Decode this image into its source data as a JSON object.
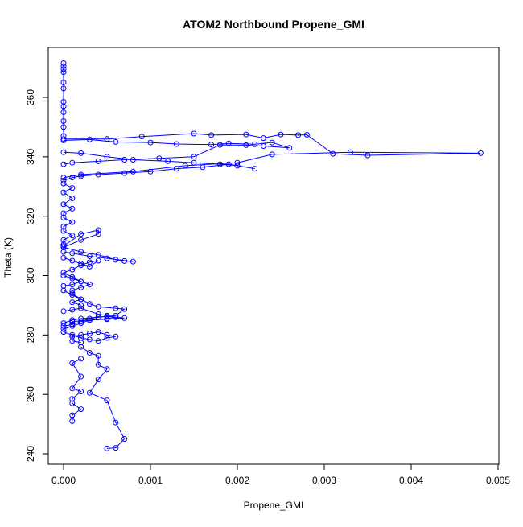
{
  "chart_data": {
    "type": "scatter",
    "title": "ATOM2 Northbound Propene_GMI",
    "xlabel": "Propene_GMI",
    "ylabel": "Theta (K)",
    "xlim": [
      0,
      0.005
    ],
    "ylim": [
      240,
      370
    ],
    "xticks": [
      "0.000",
      "0.001",
      "0.002",
      "0.003",
      "0.004",
      "0.005"
    ],
    "yticks": [
      "240",
      "260",
      "280",
      "300",
      "320",
      "340",
      "360"
    ],
    "xtick_values": [
      0,
      0.001,
      0.002,
      0.003,
      0.004,
      0.005
    ],
    "ytick_values": [
      240,
      260,
      280,
      300,
      320,
      340,
      360
    ],
    "marker": "open-circle",
    "connected": true,
    "color": "#0000ff",
    "series": [
      {
        "x": [
          0.0,
          0.0,
          0.0,
          0.0,
          0.0,
          0.0,
          0.0,
          0.0,
          0.0,
          0.0,
          0.0,
          0.0
        ],
        "y": [
          371.5,
          370.5,
          369.5,
          368.5,
          365.0,
          363.0,
          358.5,
          357.0,
          355.0,
          352.0,
          350.0,
          347.0
        ]
      },
      {
        "x": [
          0.0,
          0.0005,
          0.0009,
          0.0015,
          0.0017,
          0.0021,
          0.0023,
          0.0025,
          0.0027,
          0.0028,
          0.0031,
          0.0035,
          0.0048,
          0.0033,
          0.0024,
          0.002,
          0.0014,
          0.0008,
          0.0002,
          0.0
        ],
        "y": [
          346.0,
          346.0,
          346.8,
          347.8,
          347.3,
          347.5,
          346.3,
          347.5,
          347.3,
          347.4,
          341.0,
          340.5,
          341.2,
          341.5,
          340.8,
          338.0,
          337.0,
          335.0,
          334.0,
          333.0
        ]
      },
      {
        "x": [
          0.0,
          0.0003,
          0.0006,
          0.001,
          0.0013,
          0.0017,
          0.0019,
          0.0022,
          0.0024,
          0.0026,
          0.0023,
          0.0021,
          0.0018,
          0.0015,
          0.0011,
          0.0007,
          0.0004,
          0.0001,
          0.0
        ],
        "y": [
          345.5,
          345.8,
          345.0,
          344.8,
          344.3,
          344.1,
          344.5,
          344.2,
          344.8,
          343.0,
          343.6,
          343.9,
          344.0,
          340.0,
          339.5,
          339.0,
          338.5,
          338.0,
          337.5
        ]
      },
      {
        "x": [
          0.0,
          0.0002,
          0.0005,
          0.0008,
          0.0012,
          0.0015,
          0.0018,
          0.002,
          0.0022,
          0.0019,
          0.0016,
          0.0013,
          0.001,
          0.0007,
          0.0004,
          0.0002,
          0.0001,
          0.0
        ],
        "y": [
          341.5,
          341.2,
          340.0,
          339.0,
          338.5,
          338.0,
          337.5,
          337.0,
          336.0,
          337.5,
          336.5,
          336.0,
          335.0,
          334.5,
          334.0,
          333.5,
          333.0,
          332.0
        ]
      },
      {
        "x": [
          0.0,
          0.0001,
          0.0,
          0.0001,
          0.0,
          0.0001,
          0.0,
          0.0,
          0.0001,
          0.0,
          0.0,
          0.0001,
          0.0,
          0.0
        ],
        "y": [
          331.0,
          329.5,
          328.0,
          326.0,
          324.0,
          322.5,
          321.0,
          319.5,
          318.0,
          316.5,
          315.0,
          313.5,
          312.0,
          310.5
        ]
      },
      {
        "x": [
          0.0,
          0.0002,
          0.0004,
          0.0004,
          0.0002,
          0.0,
          0.0002,
          0.0004,
          0.0006,
          0.0007,
          0.0008,
          0.0005,
          0.0003,
          0.0001,
          0.0
        ],
        "y": [
          310.0,
          314.0,
          315.3,
          314.0,
          312.0,
          309.5,
          308.0,
          307.0,
          305.3,
          304.9,
          304.7,
          305.8,
          306.5,
          307.5,
          308.0
        ]
      },
      {
        "x": [
          0.0,
          0.0001,
          0.0002,
          0.0003,
          0.0004,
          0.0003,
          0.0002,
          0.0001,
          0.0,
          0.0001,
          0.0002,
          0.0001,
          0.0
        ],
        "y": [
          306.0,
          305.0,
          304.0,
          303.0,
          305.0,
          304.5,
          303.5,
          302.0,
          301.0,
          299.5,
          298.0,
          297.0,
          296.5
        ]
      },
      {
        "x": [
          0.0,
          0.0001,
          0.0002,
          0.0003,
          0.0004,
          0.0006,
          0.0007,
          0.0006,
          0.0004,
          0.0002,
          0.0001,
          0.0
        ],
        "y": [
          295.0,
          293.5,
          292.0,
          290.5,
          289.5,
          289.0,
          288.7,
          286.5,
          286.0,
          285.5,
          285.0,
          284.0
        ]
      },
      {
        "x": [
          0.0,
          0.0001,
          0.0002,
          0.0003,
          0.0004,
          0.0005,
          0.0006,
          0.0007,
          0.0005,
          0.0003,
          0.0002,
          0.0001,
          0.0
        ],
        "y": [
          283.0,
          283.5,
          284.5,
          285.5,
          286.0,
          286.3,
          286.0,
          285.7,
          285.3,
          285.0,
          284.0,
          283.0,
          282.0
        ]
      },
      {
        "x": [
          0.0,
          0.0001,
          0.0002,
          0.0003,
          0.0004,
          0.0005,
          0.0006,
          0.0005,
          0.0004,
          0.0003,
          0.0002,
          0.0001,
          0.0001,
          0.0002
        ],
        "y": [
          281.0,
          280.0,
          279.0,
          278.5,
          278.0,
          279.0,
          279.5,
          280.0,
          281.0,
          280.5,
          280.0,
          279.5,
          278.0,
          277.5
        ]
      },
      {
        "x": [
          0.0002,
          0.0003,
          0.0004,
          0.0004,
          0.0005,
          0.0004,
          0.0003,
          0.0005,
          0.0006,
          0.0007,
          0.0006,
          0.0005
        ],
        "y": [
          276.0,
          274.0,
          273.0,
          270.0,
          268.5,
          265.0,
          260.5,
          258.0,
          250.5,
          245.0,
          242.0,
          241.8
        ]
      },
      {
        "x": [
          0.0002,
          0.0001,
          0.0002,
          0.0001,
          0.0002,
          0.0001,
          0.0001,
          0.0002,
          0.0001,
          0.0001
        ],
        "y": [
          272.0,
          270.5,
          266.0,
          262.0,
          261.0,
          258.5,
          257.0,
          255.0,
          253.0,
          251.0
        ]
      },
      {
        "x": [
          0.0,
          0.0001,
          0.0002,
          0.0003,
          0.0002,
          0.0001,
          0.0001,
          0.0002,
          0.0001,
          0.0002
        ],
        "y": [
          300.0,
          299.0,
          298.0,
          297.0,
          296.0,
          295.0,
          294.0,
          292.0,
          291.0,
          290.0
        ]
      },
      {
        "x": [
          0.0,
          0.0001,
          0.0002,
          0.0004,
          0.0005,
          0.0006,
          0.0005,
          0.0003,
          0.0001
        ],
        "y": [
          288.0,
          288.5,
          289.0,
          287.0,
          286.5,
          286.0,
          285.5,
          285.0,
          284.5
        ]
      }
    ]
  }
}
